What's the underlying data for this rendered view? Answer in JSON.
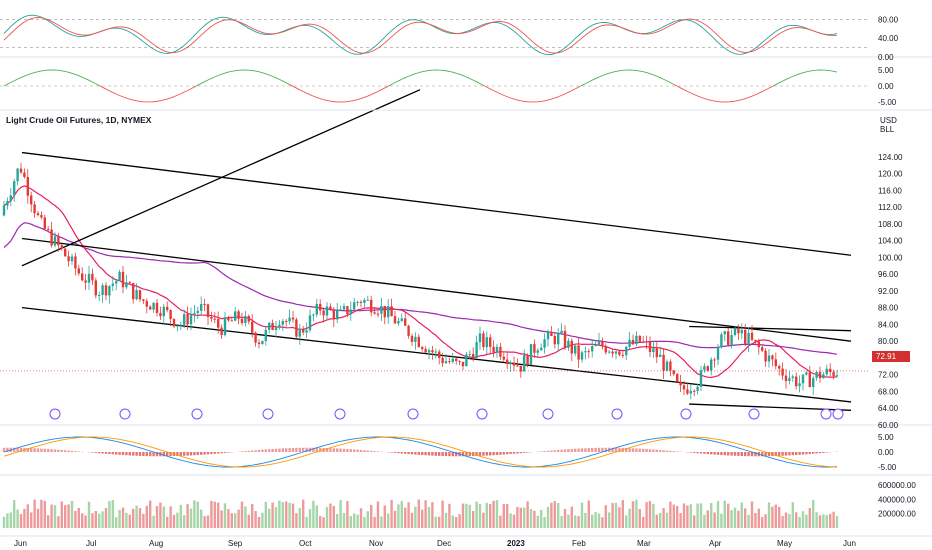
{
  "chart_data": {
    "type": "candlestick",
    "title": "Light Crude Oil Futures, 1D, NYMEX",
    "currency_label": "USD",
    "unit_label": "BLL",
    "last_price": "72.91",
    "x_tick_labels": [
      "Jun",
      "Jul",
      "Aug",
      "Sep",
      "Oct",
      "Nov",
      "Dec",
      "2023",
      "Feb",
      "Mar",
      "Apr",
      "May",
      "Jun"
    ],
    "price_axis": {
      "ticks": [
        "124.00",
        "120.00",
        "116.00",
        "112.00",
        "108.00",
        "104.00",
        "100.00",
        "96.00",
        "92.00",
        "88.00",
        "84.00",
        "80.00",
        "76.00",
        "72.00",
        "68.00",
        "64.00",
        "60.00"
      ],
      "ylim": [
        60,
        128
      ]
    },
    "stochastic": {
      "ticks": [
        "80.00",
        "40.00",
        "0.00"
      ],
      "ylim": [
        0,
        100
      ],
      "upper_band": 80,
      "lower_band": 20,
      "k_color": "#26a69a",
      "d_color": "#ef5350"
    },
    "oscillator": {
      "ticks": [
        "5.00",
        "0.00",
        "-5.00"
      ],
      "ylim": [
        -8,
        8
      ],
      "up_color": "#4caf50",
      "down_color": "#ef5350"
    },
    "macd": {
      "ticks": [
        "5.00",
        "0.00",
        "-5.00"
      ],
      "ylim": [
        -8,
        8
      ],
      "macd_color": "#1e88e5",
      "signal_color": "#ff9800"
    },
    "volume": {
      "ticks": [
        "600000.00",
        "400000.00",
        "200000.00"
      ],
      "ylim": [
        0,
        700000
      ]
    },
    "moving_averages": [
      {
        "name": "50-day",
        "color": "#e91e63"
      },
      {
        "name": "200-day",
        "color": "#9c27b0"
      }
    ],
    "trend_lines_price_points": [
      {
        "from": [
          "2022-06-01",
          125
        ],
        "to": [
          "2023-06-01",
          100.5
        ]
      },
      {
        "from": [
          "2022-06-01",
          104.5
        ],
        "to": [
          "2023-06-01",
          80
        ]
      },
      {
        "from": [
          "2022-06-01",
          88
        ],
        "to": [
          "2023-06-01",
          65.5
        ]
      },
      {
        "from": [
          "2022-06-01",
          98
        ],
        "to": [
          "2022-11-20",
          140
        ]
      },
      {
        "from": [
          "2023-03-20",
          83.5
        ],
        "to": [
          "2023-06-01",
          82.5
        ]
      },
      {
        "from": [
          "2023-03-20",
          65
        ],
        "to": [
          "2023-06-01",
          63.5
        ]
      }
    ],
    "colors": {
      "up": "#26a69a",
      "down": "#e53935",
      "price_tag": "#d32f2f"
    }
  }
}
